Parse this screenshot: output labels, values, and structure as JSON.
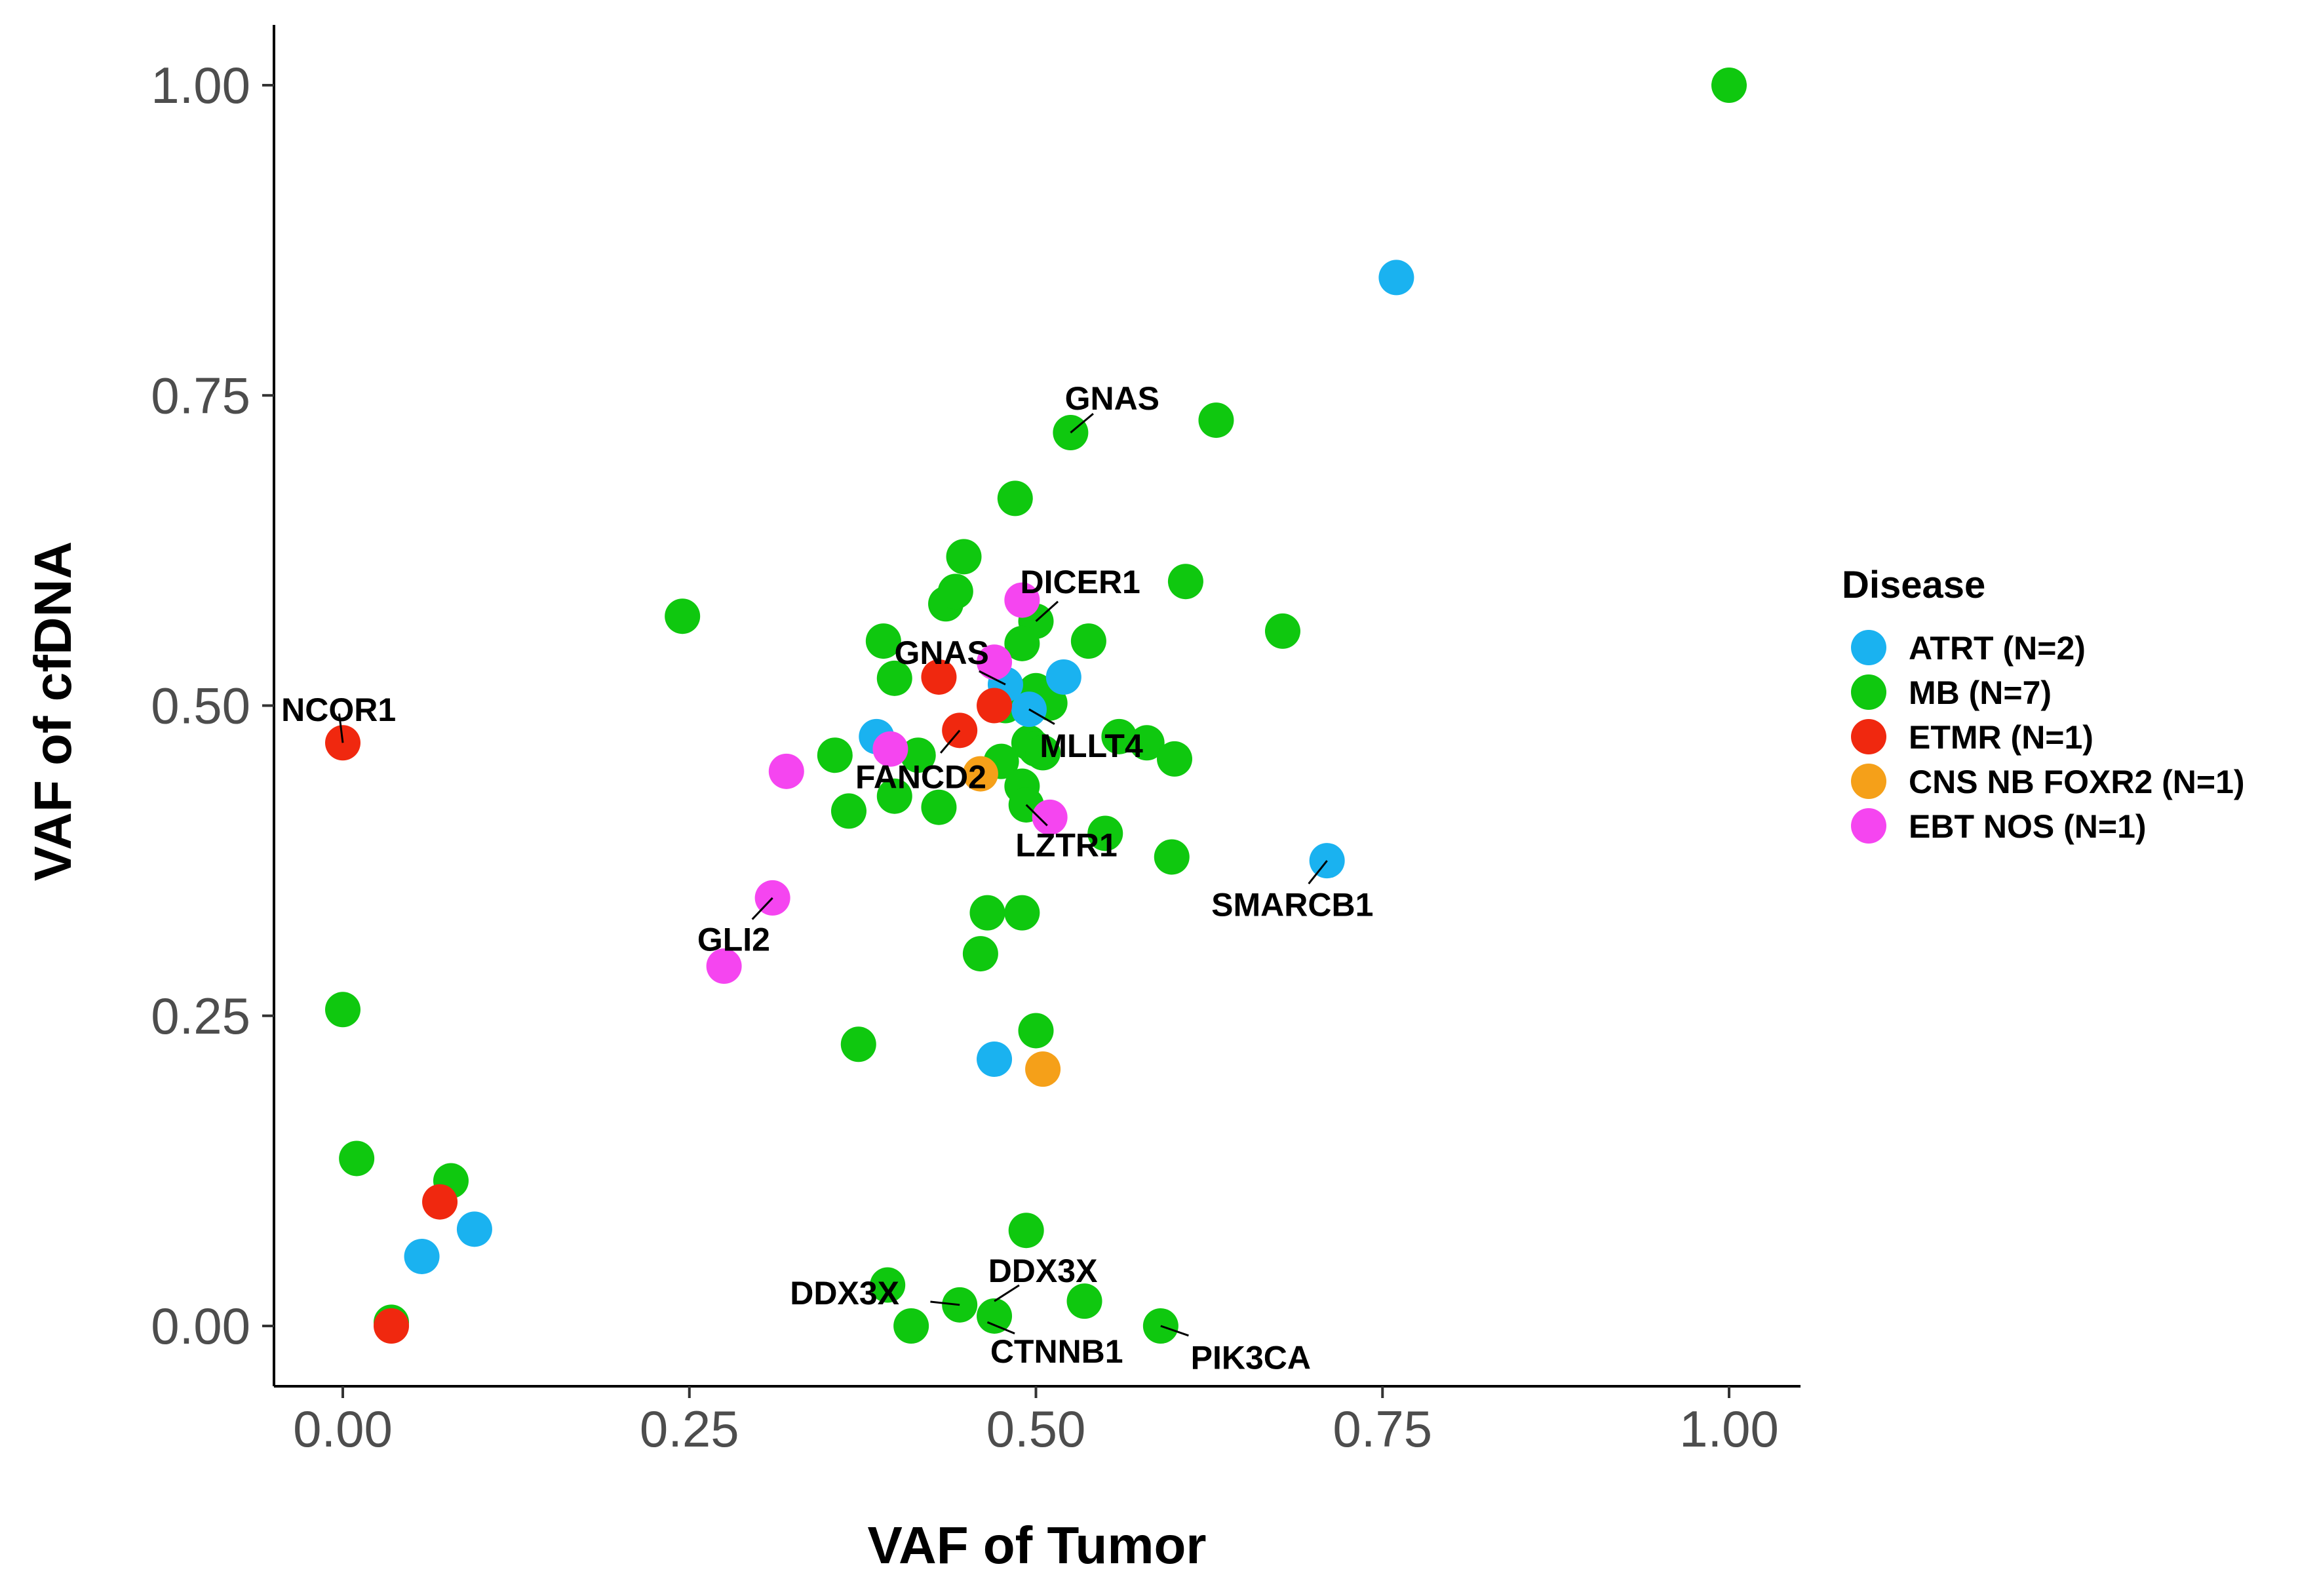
{
  "chart_data": {
    "type": "scatter",
    "xlabel": "VAF of Tumor",
    "ylabel": "VAF of cfDNA",
    "xlim": [
      -0.1,
      1.1
    ],
    "ylim": [
      -0.05,
      1.05
    ],
    "x_ticks": [
      0,
      0.25,
      0.5,
      0.75,
      1
    ],
    "x_tick_labels": [
      "0.00",
      "0.25",
      "0.50",
      "0.75",
      "1.00"
    ],
    "y_ticks": [
      0,
      0.25,
      0.5,
      0.75,
      1
    ],
    "y_tick_labels": [
      "0.00",
      "0.25",
      "0.50",
      "0.75",
      "1.00"
    ],
    "grid": false,
    "legend": {
      "title": "Disease",
      "position": "right",
      "entries": [
        {
          "key": "ATRT",
          "label": "ATRT (N=2)",
          "color": "#1ab2f0"
        },
        {
          "key": "MB",
          "label": "MB (N=7)",
          "color": "#0fc80f"
        },
        {
          "key": "ETMR",
          "label": "ETMR (N=1)",
          "color": "#f0280f"
        },
        {
          "key": "CNSNB",
          "label": "CNS NB FOXR2 (N=1)",
          "color": "#f5a019"
        },
        {
          "key": "EBT",
          "label": "EBT NOS (N=1)",
          "color": "#f545f0"
        }
      ]
    },
    "series": [
      {
        "name": "MB (N=7)",
        "key": "MB",
        "points": [
          [
            1.0,
            1.0
          ],
          [
            0.63,
            0.73
          ],
          [
            0.525,
            0.72
          ],
          [
            0.485,
            0.667
          ],
          [
            0.448,
            0.62
          ],
          [
            0.435,
            0.582
          ],
          [
            0.442,
            0.592
          ],
          [
            0.245,
            0.572
          ],
          [
            0.608,
            0.6
          ],
          [
            0.678,
            0.56
          ],
          [
            0.5,
            0.568
          ],
          [
            0.49,
            0.55
          ],
          [
            0.538,
            0.552
          ],
          [
            0.39,
            0.552
          ],
          [
            0.398,
            0.522
          ],
          [
            0.5,
            0.512
          ],
          [
            0.478,
            0.5
          ],
          [
            0.51,
            0.502
          ],
          [
            0.56,
            0.475
          ],
          [
            0.58,
            0.47
          ],
          [
            0.6,
            0.457
          ],
          [
            0.495,
            0.47
          ],
          [
            0.5,
            0.465
          ],
          [
            0.475,
            0.455
          ],
          [
            0.505,
            0.462
          ],
          [
            0.415,
            0.46
          ],
          [
            0.355,
            0.46
          ],
          [
            0.43,
            0.418
          ],
          [
            0.49,
            0.435
          ],
          [
            0.398,
            0.427
          ],
          [
            0.365,
            0.415
          ],
          [
            0.493,
            0.42
          ],
          [
            0.55,
            0.397
          ],
          [
            0.598,
            0.378
          ],
          [
            0.465,
            0.333
          ],
          [
            0.49,
            0.333
          ],
          [
            0.46,
            0.3
          ],
          [
            0.372,
            0.227
          ],
          [
            0.5,
            0.238
          ],
          [
            0.0,
            0.255
          ],
          [
            0.01,
            0.135
          ],
          [
            0.078,
            0.117
          ],
          [
            0.493,
            0.077
          ],
          [
            0.393,
            0.033
          ],
          [
            0.445,
            0.017
          ],
          [
            0.47,
            0.008
          ],
          [
            0.535,
            0.02
          ],
          [
            0.41,
            0.0
          ],
          [
            0.59,
            0.0
          ],
          [
            0.035,
            0.003
          ]
        ]
      },
      {
        "name": "ATRT (N=2)",
        "key": "ATRT",
        "points": [
          [
            0.76,
            0.845
          ],
          [
            0.71,
            0.375
          ],
          [
            0.52,
            0.523
          ],
          [
            0.385,
            0.475
          ],
          [
            0.478,
            0.517
          ],
          [
            0.495,
            0.497
          ],
          [
            0.47,
            0.215
          ],
          [
            0.095,
            0.078
          ],
          [
            0.057,
            0.056
          ]
        ]
      },
      {
        "name": "ETMR (N=1)",
        "key": "ETMR",
        "points": [
          [
            0.0,
            0.47
          ],
          [
            0.43,
            0.523
          ],
          [
            0.445,
            0.48
          ],
          [
            0.47,
            0.5
          ],
          [
            0.07,
            0.1
          ],
          [
            0.035,
            0.0
          ]
        ]
      },
      {
        "name": "CNS NB FOXR2 (N=1)",
        "key": "CNSNB",
        "points": [
          [
            0.46,
            0.445
          ],
          [
            0.505,
            0.207
          ]
        ]
      },
      {
        "name": "EBT NOS (N=1)",
        "key": "EBT",
        "points": [
          [
            0.49,
            0.585
          ],
          [
            0.47,
            0.535
          ],
          [
            0.32,
            0.447
          ],
          [
            0.395,
            0.465
          ],
          [
            0.51,
            0.41
          ],
          [
            0.31,
            0.345
          ],
          [
            0.275,
            0.29
          ]
        ]
      }
    ],
    "annotations": [
      {
        "text": "GNAS",
        "point": [
          0.525,
          0.72
        ],
        "label_at": [
          0.555,
          0.748
        ]
      },
      {
        "text": "DICER1",
        "point": [
          0.5,
          0.568
        ],
        "label_at": [
          0.532,
          0.6
        ]
      },
      {
        "text": "GNAS",
        "point": [
          0.478,
          0.517
        ],
        "label_at": [
          0.432,
          0.543
        ]
      },
      {
        "text": "NCOR1",
        "point": [
          0.0,
          0.47
        ],
        "label_at": [
          -0.003,
          0.497
        ]
      },
      {
        "text": "MLLT4",
        "point": [
          0.495,
          0.497
        ],
        "label_at": [
          0.54,
          0.468
        ]
      },
      {
        "text": "FANCD2",
        "point": [
          0.445,
          0.48
        ],
        "label_at": [
          0.417,
          0.443
        ]
      },
      {
        "text": "LZTR1",
        "point": [
          0.493,
          0.42
        ],
        "label_at": [
          0.522,
          0.388
        ]
      },
      {
        "text": "SMARCB1",
        "point": [
          0.71,
          0.375
        ],
        "label_at": [
          0.685,
          0.34
        ]
      },
      {
        "text": "GLI2",
        "point": [
          0.31,
          0.345
        ],
        "label_at": [
          0.282,
          0.312
        ]
      },
      {
        "text": "DDX3X",
        "point": [
          0.47,
          0.02
        ],
        "label_at": [
          0.505,
          0.045
        ]
      },
      {
        "text": "DDX3X",
        "point": [
          0.445,
          0.017
        ],
        "label_at": [
          0.362,
          0.027
        ]
      },
      {
        "text": "CTNNB1",
        "point": [
          0.465,
          0.003
        ],
        "label_at": [
          0.515,
          -0.02
        ]
      },
      {
        "text": "PIK3CA",
        "point": [
          0.59,
          0.0
        ],
        "label_at": [
          0.655,
          -0.025
        ]
      }
    ]
  }
}
